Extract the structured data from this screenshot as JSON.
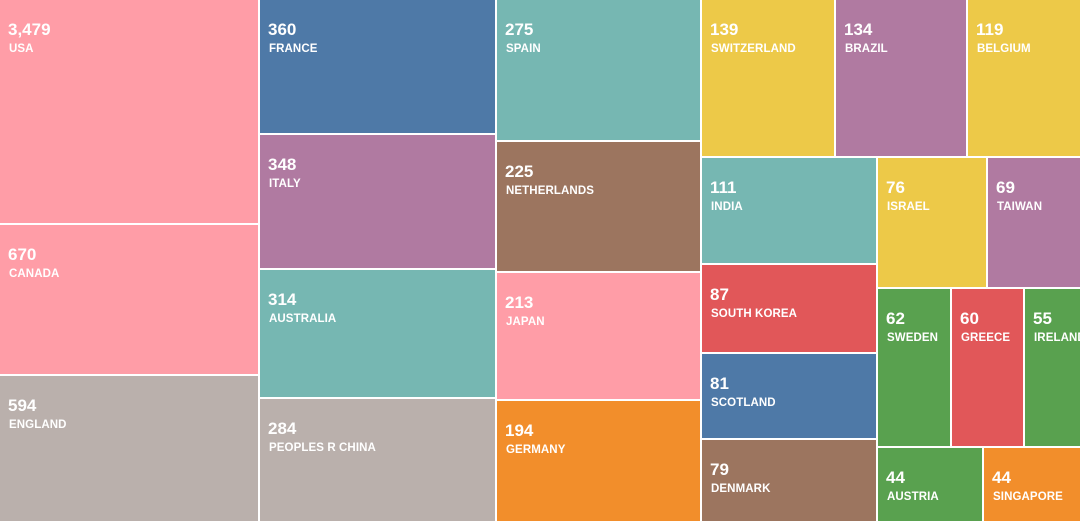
{
  "chart_data": {
    "type": "treemap",
    "items": [
      {
        "label": "USA",
        "value": 3479,
        "display": "3,479",
        "color": "#FF9DA7"
      },
      {
        "label": "CANADA",
        "value": 670,
        "display": "670",
        "color": "#FF9DA7"
      },
      {
        "label": "ENGLAND",
        "value": 594,
        "display": "594",
        "color": "#BAB0AC"
      },
      {
        "label": "FRANCE",
        "value": 360,
        "display": "360",
        "color": "#4E79A7"
      },
      {
        "label": "ITALY",
        "value": 348,
        "display": "348",
        "color": "#B07AA1"
      },
      {
        "label": "AUSTRALIA",
        "value": 314,
        "display": "314",
        "color": "#76B7B2"
      },
      {
        "label": "PEOPLES R CHINA",
        "value": 284,
        "display": "284",
        "color": "#BAB0AC"
      },
      {
        "label": "SPAIN",
        "value": 275,
        "display": "275",
        "color": "#76B7B2"
      },
      {
        "label": "NETHERLANDS",
        "value": 225,
        "display": "225",
        "color": "#9C755F"
      },
      {
        "label": "JAPAN",
        "value": 213,
        "display": "213",
        "color": "#FF9DA7"
      },
      {
        "label": "GERMANY",
        "value": 194,
        "display": "194",
        "color": "#F28E2B"
      },
      {
        "label": "SWITZERLAND",
        "value": 139,
        "display": "139",
        "color": "#EDC948"
      },
      {
        "label": "BRAZIL",
        "value": 134,
        "display": "134",
        "color": "#B07AA1"
      },
      {
        "label": "BELGIUM",
        "value": 119,
        "display": "119",
        "color": "#EDC948"
      },
      {
        "label": "INDIA",
        "value": 111,
        "display": "111",
        "color": "#76B7B2"
      },
      {
        "label": "SOUTH KOREA",
        "value": 87,
        "display": "87",
        "color": "#E15759"
      },
      {
        "label": "SCOTLAND",
        "value": 81,
        "display": "81",
        "color": "#4E79A7"
      },
      {
        "label": "DENMARK",
        "value": 79,
        "display": "79",
        "color": "#9C755F"
      },
      {
        "label": "ISRAEL",
        "value": 76,
        "display": "76",
        "color": "#EDC948"
      },
      {
        "label": "TAIWAN",
        "value": 69,
        "display": "69",
        "color": "#B07AA1"
      },
      {
        "label": "SWEDEN",
        "value": 62,
        "display": "62",
        "color": "#59A14F"
      },
      {
        "label": "GREECE",
        "value": 60,
        "display": "60",
        "color": "#E15759"
      },
      {
        "label": "IRELAND",
        "value": 55,
        "display": "55",
        "color": "#59A14F"
      },
      {
        "label": "AUSTRIA",
        "value": 44,
        "display": "44",
        "color": "#59A14F"
      },
      {
        "label": "SINGAPORE",
        "value": 44,
        "display": "44",
        "color": "#F28E2B"
      }
    ]
  }
}
